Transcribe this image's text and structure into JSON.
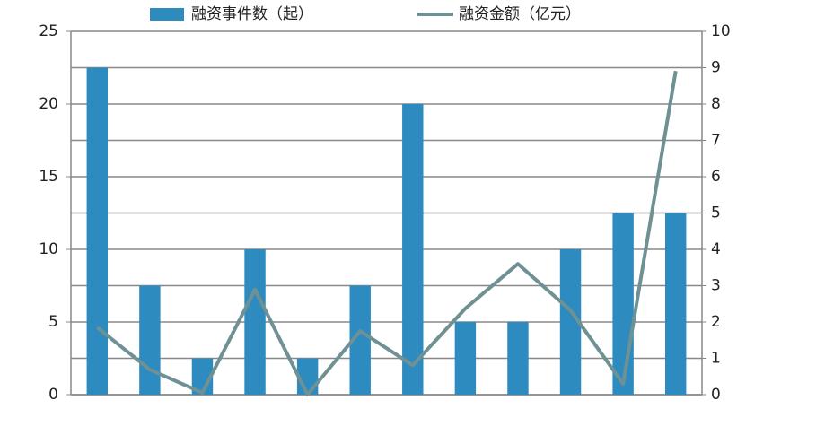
{
  "chart_data": {
    "type": "bar-line",
    "categories": [
      null,
      null,
      null,
      null,
      null,
      null,
      null,
      null,
      null,
      null,
      null,
      null
    ],
    "series": [
      {
        "name": "融资事件数（起）",
        "type": "bar",
        "color": "#2e8bc0",
        "values": [
          22.5,
          7.5,
          2.5,
          10,
          2.5,
          7.5,
          20,
          5,
          5,
          10,
          12.5,
          12.5
        ]
      },
      {
        "name": "融资金额（亿元）",
        "type": "line",
        "axis": "y2",
        "color": "#6f9194",
        "values": [
          1.85,
          0.69,
          0.05,
          2.89,
          0,
          1.75,
          0.81,
          2.37,
          3.6,
          2.32,
          0.3,
          8.91
        ]
      }
    ],
    "ylim": [
      0,
      25
    ],
    "yticks": [
      0,
      5,
      10,
      15,
      20,
      25
    ],
    "y2lim": [
      0,
      10
    ],
    "y2ticks": [
      0,
      1,
      2,
      3,
      4,
      5,
      6,
      7,
      8,
      9,
      10
    ],
    "grid": true,
    "legend": "top"
  }
}
